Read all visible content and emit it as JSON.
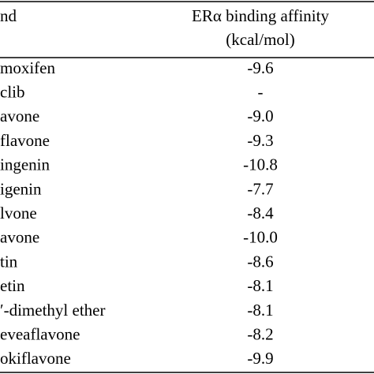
{
  "table": {
    "header": [
      "nd",
      "ERα binding affinity",
      "(kcal/mol)"
    ],
    "rows": [
      [
        "moxifen",
        "-9.6"
      ],
      [
        "clib",
        "-"
      ],
      [
        "avone",
        "-9.0"
      ],
      [
        "flavone",
        "-9.3"
      ],
      [
        "ingenin",
        "-10.8"
      ],
      [
        "igenin",
        "-7.7"
      ],
      [
        "lvone",
        "-8.4"
      ],
      [
        "avone",
        "-10.0"
      ],
      [
        "tin",
        "-8.6"
      ],
      [
        "etin",
        "-8.1"
      ],
      [
        "′-dimethyl ether",
        "-8.1"
      ],
      [
        "eveaflavone",
        "-8.2"
      ],
      [
        "okiflavone",
        "-9.9"
      ]
    ]
  }
}
